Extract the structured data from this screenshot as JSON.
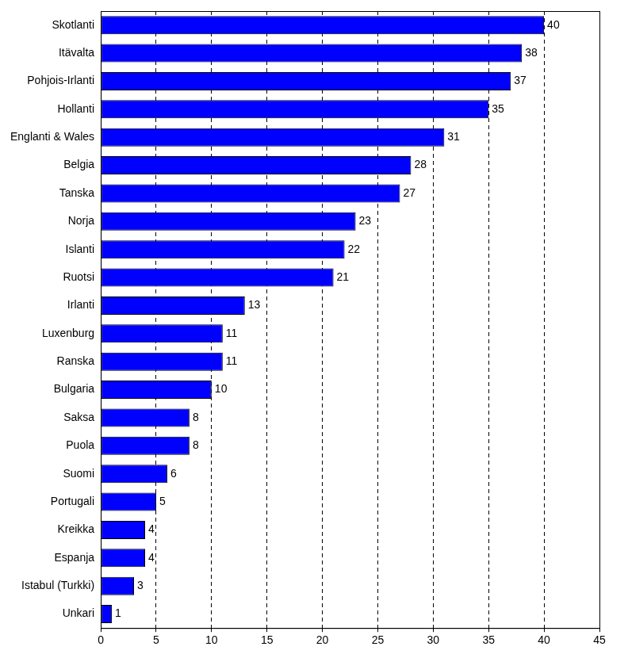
{
  "chart_data": {
    "type": "bar",
    "orientation": "horizontal",
    "categories": [
      "Skotlanti",
      "Itävalta",
      "Pohjois-Irlanti",
      "Hollanti",
      "Englanti & Wales",
      "Belgia",
      "Tanska",
      "Norja",
      "Islanti",
      "Ruotsi",
      "Irlanti",
      "Luxenburg",
      "Ranska",
      "Bulgaria",
      "Saksa",
      "Puola",
      "Suomi",
      "Portugali",
      "Kreikka",
      "Espanja",
      "Istabul (Turkki)",
      "Unkari"
    ],
    "values": [
      40,
      38,
      37,
      35,
      31,
      28,
      27,
      23,
      22,
      21,
      13,
      11,
      11,
      10,
      8,
      8,
      6,
      5,
      4,
      4,
      3,
      1
    ],
    "color": "#0000ff",
    "xlim": [
      0,
      45
    ],
    "xticks": [
      0,
      5,
      10,
      15,
      20,
      25,
      30,
      35,
      40,
      45
    ],
    "grid": true,
    "data_labels": true
  }
}
